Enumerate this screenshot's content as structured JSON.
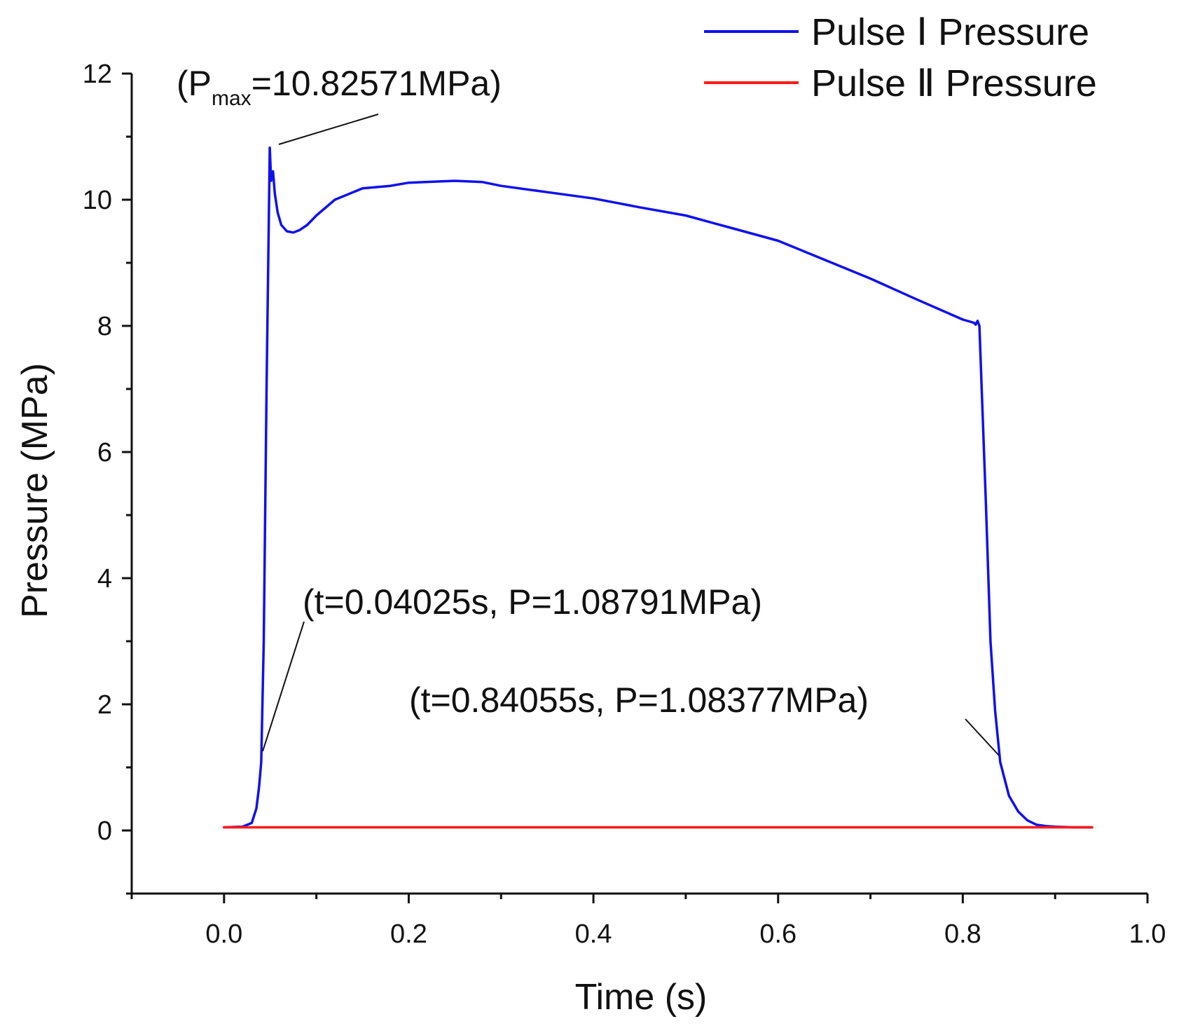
{
  "chart_data": {
    "type": "line",
    "xlabel": "Time (s)",
    "ylabel": "Pressure (MPa)",
    "xlim": [
      -0.1,
      1.0
    ],
    "ylim": [
      -1,
      12
    ],
    "x_ticks": [
      0.0,
      0.2,
      0.4,
      0.6,
      0.8,
      1.0
    ],
    "x_tick_labels": [
      "0.0",
      "0.2",
      "0.4",
      "0.6",
      "0.8",
      "1.0"
    ],
    "y_ticks": [
      0,
      2,
      4,
      6,
      8,
      10,
      12
    ],
    "y_tick_labels": [
      "0",
      "2",
      "4",
      "6",
      "8",
      "10",
      "12"
    ],
    "legend_position": "top-right",
    "series": [
      {
        "name": "Pulse Ⅰ Pressure",
        "color": "#1010ee",
        "x": [
          0.0,
          0.02,
          0.03,
          0.035,
          0.038,
          0.04025,
          0.043,
          0.046,
          0.0495,
          0.051,
          0.053,
          0.055,
          0.058,
          0.062,
          0.068,
          0.075,
          0.082,
          0.09,
          0.1,
          0.12,
          0.15,
          0.18,
          0.2,
          0.25,
          0.28,
          0.3,
          0.35,
          0.4,
          0.45,
          0.5,
          0.55,
          0.6,
          0.65,
          0.7,
          0.75,
          0.8,
          0.812,
          0.814,
          0.816,
          0.818,
          0.82,
          0.825,
          0.83,
          0.835,
          0.84055,
          0.85,
          0.86,
          0.87,
          0.88,
          0.89,
          0.9,
          0.92,
          0.94
        ],
        "y": [
          0.05,
          0.06,
          0.12,
          0.35,
          0.7,
          1.08791,
          3.0,
          7.0,
          10.82571,
          10.3,
          10.45,
          10.1,
          9.8,
          9.6,
          9.5,
          9.48,
          9.52,
          9.6,
          9.75,
          10.0,
          10.18,
          10.22,
          10.27,
          10.3,
          10.28,
          10.22,
          10.12,
          10.02,
          9.88,
          9.75,
          9.55,
          9.35,
          9.05,
          8.75,
          8.42,
          8.1,
          8.05,
          8.02,
          8.08,
          8.0,
          7.2,
          5.2,
          3.0,
          1.9,
          1.08377,
          0.55,
          0.3,
          0.16,
          0.09,
          0.07,
          0.06,
          0.05,
          0.05
        ]
      },
      {
        "name": "Pulse Ⅱ Pressure",
        "color": "#ff1a1a",
        "x": [
          0.0,
          0.94
        ],
        "y": [
          0.05,
          0.05
        ]
      }
    ],
    "annotations": [
      {
        "id": "pmax",
        "open": "(P",
        "sub": "max",
        "rest": "=10.82571MPa)",
        "target_x": 0.0495,
        "target_y": 10.82571
      },
      {
        "id": "t1",
        "text": "(t=0.04025s, P=1.08791MPa)",
        "target_x": 0.04025,
        "target_y": 1.08791
      },
      {
        "id": "t2",
        "text": "(t=0.84055s, P=1.08377MPa)",
        "target_x": 0.84055,
        "target_y": 1.08377
      }
    ]
  }
}
